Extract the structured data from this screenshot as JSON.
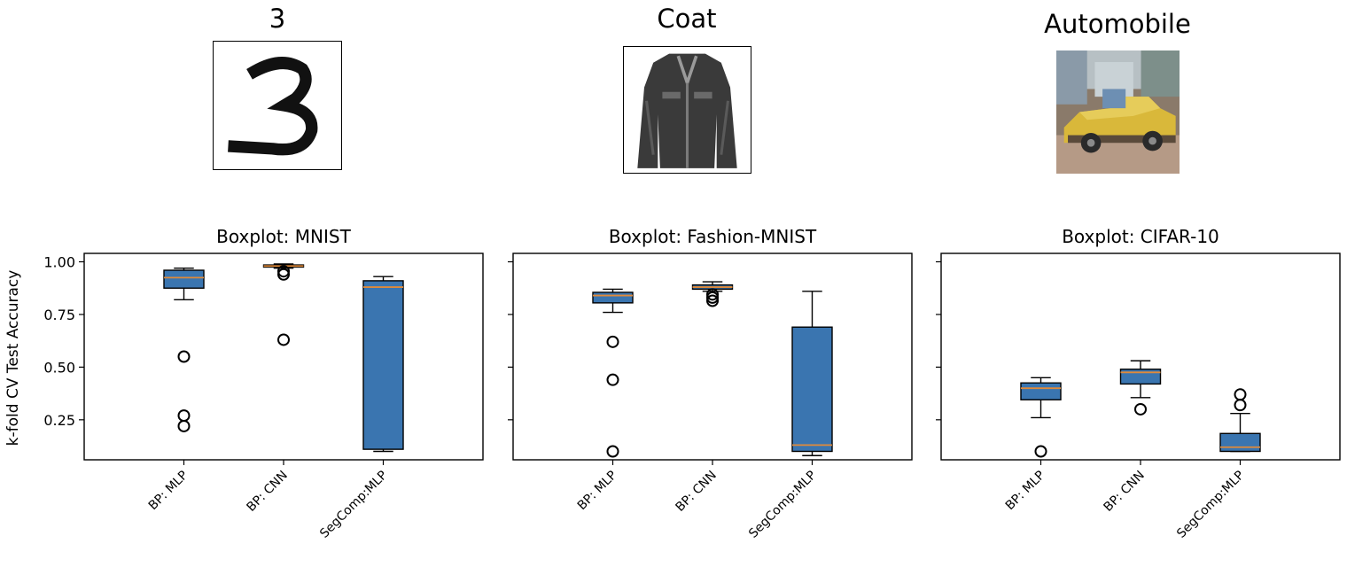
{
  "samples": [
    {
      "label": "3"
    },
    {
      "label": "Coat"
    },
    {
      "label": "Automobile"
    }
  ],
  "colors": {
    "box_fill": "#3a75b0",
    "median": "#e08a3a",
    "axes": "#000000"
  },
  "shared_ylabel": "k-fold CV Test Accuracy",
  "chart_data": [
    {
      "type": "box",
      "title": "Boxplot: MNIST",
      "categories": [
        "BP: MLP",
        "BP: CNN",
        "SegComp:MLP"
      ],
      "ylabel": "k-fold CV Test Accuracy",
      "yticks": [
        0.25,
        0.5,
        0.75,
        1.0
      ],
      "ytick_labels": [
        "0.25",
        "0.50",
        "0.75",
        "1.00"
      ],
      "ylim": [
        0.06,
        1.04
      ],
      "boxes": [
        {
          "whisker_low": 0.82,
          "q1": 0.875,
          "median": 0.925,
          "q3": 0.96,
          "whisker_high": 0.97,
          "outliers": [
            0.55,
            0.27,
            0.22
          ]
        },
        {
          "whisker_low": 0.97,
          "q1": 0.975,
          "median": 0.98,
          "q3": 0.985,
          "whisker_high": 0.99,
          "outliers": [
            0.955,
            0.94,
            0.63
          ]
        },
        {
          "whisker_low": 0.1,
          "q1": 0.11,
          "median": 0.88,
          "q3": 0.91,
          "whisker_high": 0.93,
          "outliers": []
        }
      ]
    },
    {
      "type": "box",
      "title": "Boxplot: Fashion-MNIST",
      "categories": [
        "BP: MLP",
        "BP: CNN",
        "SegComp:MLP"
      ],
      "yticks": [
        0.25,
        0.5,
        0.75,
        1.0
      ],
      "ylim": [
        0.06,
        1.04
      ],
      "boxes": [
        {
          "whisker_low": 0.76,
          "q1": 0.805,
          "median": 0.84,
          "q3": 0.855,
          "whisker_high": 0.87,
          "outliers": [
            0.62,
            0.44,
            0.1
          ]
        },
        {
          "whisker_low": 0.86,
          "q1": 0.87,
          "median": 0.88,
          "q3": 0.89,
          "whisker_high": 0.905,
          "outliers": [
            0.845,
            0.83,
            0.815
          ]
        },
        {
          "whisker_low": 0.08,
          "q1": 0.1,
          "median": 0.13,
          "q3": 0.69,
          "whisker_high": 0.86,
          "outliers": []
        }
      ]
    },
    {
      "type": "box",
      "title": "Boxplot: CIFAR-10",
      "categories": [
        "BP: MLP",
        "BP: CNN",
        "SegComp:MLP"
      ],
      "yticks": [
        0.25,
        0.5,
        0.75,
        1.0
      ],
      "ylim": [
        0.06,
        1.04
      ],
      "boxes": [
        {
          "whisker_low": 0.26,
          "q1": 0.345,
          "median": 0.4,
          "q3": 0.425,
          "whisker_high": 0.45,
          "outliers": [
            0.1
          ]
        },
        {
          "whisker_low": 0.355,
          "q1": 0.42,
          "median": 0.475,
          "q3": 0.49,
          "whisker_high": 0.53,
          "outliers": [
            0.3
          ]
        },
        {
          "whisker_low": 0.1,
          "q1": 0.1,
          "median": 0.12,
          "q3": 0.185,
          "whisker_high": 0.28,
          "outliers": [
            0.37,
            0.32
          ]
        }
      ]
    }
  ]
}
